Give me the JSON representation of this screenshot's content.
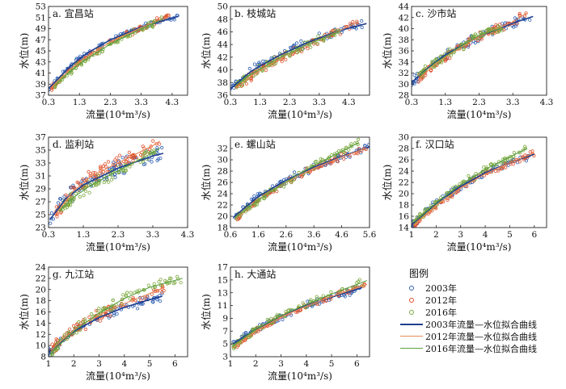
{
  "chart_data": [
    {
      "id": "a",
      "type": "scatter",
      "title": "a. 宜昌站",
      "xlabel": "流量(10⁴m³/s)",
      "ylabel": "水位(m)",
      "xlim": [
        0.3,
        4.8
      ],
      "ylim": [
        37,
        53
      ],
      "xticks": [
        0.3,
        1.3,
        2.3,
        3.3,
        4.3
      ],
      "yticks": [
        37,
        39,
        41,
        43,
        45,
        47,
        49,
        51,
        53
      ],
      "series": [
        {
          "year": "2003",
          "fit": [
            [
              0.3,
              38.2
            ],
            [
              1.0,
              42.2
            ],
            [
              1.5,
              44.4
            ],
            [
              2.3,
              47.0
            ],
            [
              3.3,
              49.3
            ],
            [
              4.3,
              50.9
            ],
            [
              4.5,
              51.2
            ]
          ],
          "spread": 0.5
        },
        {
          "year": "2012",
          "fit": [
            [
              0.4,
              38.4
            ],
            [
              1.0,
              41.7
            ],
            [
              1.5,
              43.8
            ],
            [
              2.3,
              46.6
            ],
            [
              3.3,
              49.2
            ],
            [
              4.2,
              51.2
            ]
          ],
          "spread": 0.5
        },
        {
          "year": "2016",
          "fit": [
            [
              0.5,
              38.8
            ],
            [
              1.0,
              41.3
            ],
            [
              1.5,
              43.4
            ],
            [
              2.3,
              46.2
            ],
            [
              3.3,
              49.0
            ],
            [
              4.0,
              50.7
            ]
          ],
          "spread": 0.5
        }
      ]
    },
    {
      "id": "b",
      "type": "scatter",
      "title": "b. 枝城站",
      "xlabel": "流量(10⁴m³/s)",
      "ylabel": "水位(m)",
      "xlim": [
        0.3,
        5.0
      ],
      "ylim": [
        36,
        50
      ],
      "xticks": [
        0.3,
        1.3,
        2.3,
        3.3,
        4.3
      ],
      "yticks": [
        36,
        38,
        40,
        42,
        44,
        46,
        48,
        50
      ],
      "series": [
        {
          "year": "2003",
          "fit": [
            [
              0.3,
              37.0
            ],
            [
              1.0,
              39.8
            ],
            [
              2.0,
              42.4
            ],
            [
              3.0,
              44.5
            ],
            [
              4.0,
              46.2
            ],
            [
              4.9,
              47.3
            ]
          ],
          "spread": 0.7
        },
        {
          "year": "2012",
          "fit": [
            [
              0.5,
              37.2
            ],
            [
              1.0,
              39.0
            ],
            [
              2.0,
              41.9
            ],
            [
              3.0,
              44.2
            ],
            [
              4.0,
              46.2
            ],
            [
              4.6,
              47.6
            ]
          ],
          "spread": 0.6
        },
        {
          "year": "2016",
          "fit": [
            [
              0.5,
              37.6
            ],
            [
              1.0,
              39.3
            ],
            [
              2.0,
              42.0
            ],
            [
              3.0,
              44.2
            ],
            [
              4.0,
              46.1
            ]
          ],
          "spread": 0.6
        }
      ]
    },
    {
      "id": "c",
      "type": "scatter",
      "title": "c. 沙市站",
      "xlabel": "流量(10⁴m³/s)",
      "ylabel": "水位(m)",
      "xlim": [
        0.3,
        4.3
      ],
      "ylim": [
        28,
        44
      ],
      "xticks": [
        0.3,
        1.3,
        2.3,
        3.3,
        4.3
      ],
      "yticks": [
        28,
        30,
        32,
        34,
        36,
        38,
        40,
        42,
        44
      ],
      "series": [
        {
          "year": "2003",
          "fit": [
            [
              0.3,
              30.3
            ],
            [
              0.8,
              33.0
            ],
            [
              1.3,
              35.3
            ],
            [
              2.3,
              38.6
            ],
            [
              3.3,
              41.0
            ],
            [
              3.9,
              42.2
            ]
          ],
          "spread": 0.8
        },
        {
          "year": "2012",
          "fit": [
            [
              0.5,
              30.8
            ],
            [
              1.0,
              33.6
            ],
            [
              1.5,
              35.7
            ],
            [
              2.3,
              38.6
            ],
            [
              3.3,
              41.2
            ],
            [
              3.7,
              42.8
            ]
          ],
          "spread": 0.7
        },
        {
          "year": "2016",
          "fit": [
            [
              0.5,
              31.4
            ],
            [
              1.0,
              33.8
            ],
            [
              1.5,
              35.8
            ],
            [
              2.3,
              38.8
            ],
            [
              3.0,
              40.2
            ]
          ],
          "spread": 0.7
        }
      ]
    },
    {
      "id": "d",
      "type": "scatter",
      "title": "d. 监利站",
      "xlabel": "流量(10⁴m³/s)",
      "ylabel": "水位(m)",
      "xlim": [
        0.3,
        4.3
      ],
      "ylim": [
        23,
        37
      ],
      "xticks": [
        0.3,
        1.3,
        2.3,
        3.3,
        4.3
      ],
      "yticks": [
        23,
        25,
        27,
        29,
        31,
        33,
        35,
        37
      ],
      "series": [
        {
          "year": "2003",
          "fit": [
            [
              0.35,
              24.3
            ],
            [
              0.8,
              27.5
            ],
            [
              1.3,
              29.6
            ],
            [
              2.3,
              32.2
            ],
            [
              3.3,
              34.1
            ],
            [
              3.6,
              34.5
            ]
          ],
          "spread": 1.2
        },
        {
          "year": "2012",
          "fit": [
            [
              0.5,
              25.0
            ],
            [
              1.0,
              28.6
            ],
            [
              1.5,
              30.9
            ],
            [
              2.3,
              33.0
            ],
            [
              3.3,
              35.7
            ],
            [
              3.5,
              36.4
            ]
          ],
          "spread": 1.0
        },
        {
          "year": "2016",
          "fit": [
            [
              0.6,
              25.5
            ],
            [
              1.0,
              27.6
            ],
            [
              1.5,
              29.5
            ],
            [
              2.3,
              31.8
            ],
            [
              3.3,
              34.6
            ],
            [
              3.5,
              35.3
            ]
          ],
          "spread": 0.9
        }
      ]
    },
    {
      "id": "e",
      "type": "scatter",
      "title": "e. 螺山站",
      "xlabel": "流量(10⁴m³/s)",
      "ylabel": "水位(m)",
      "xlim": [
        0.6,
        5.6
      ],
      "ylim": [
        18,
        34
      ],
      "xticks": [
        0.6,
        1.6,
        2.6,
        3.6,
        4.6,
        5.6
      ],
      "yticks": [
        18,
        20,
        22,
        24,
        26,
        28,
        30,
        32
      ],
      "series": [
        {
          "year": "2003",
          "fit": [
            [
              0.7,
              19.8
            ],
            [
              1.6,
              23.5
            ],
            [
              2.6,
              26.4
            ],
            [
              3.6,
              28.7
            ],
            [
              4.6,
              30.6
            ],
            [
              5.6,
              32.3
            ]
          ],
          "spread": 0.6
        },
        {
          "year": "2012",
          "fit": [
            [
              0.8,
              19.6
            ],
            [
              1.6,
              23.0
            ],
            [
              2.6,
              26.0
            ],
            [
              3.6,
              28.5
            ],
            [
              4.6,
              30.5
            ],
            [
              5.5,
              32.1
            ]
          ],
          "spread": 0.5
        },
        {
          "year": "2016",
          "fit": [
            [
              0.8,
              19.8
            ],
            [
              1.6,
              22.9
            ],
            [
              2.6,
              26.1
            ],
            [
              3.6,
              29.0
            ],
            [
              4.6,
              31.5
            ],
            [
              5.2,
              33.0
            ]
          ],
          "spread": 0.6
        }
      ]
    },
    {
      "id": "f",
      "type": "scatter",
      "title": "f. 汉口站",
      "xlabel": "流量(10⁴m³/s)",
      "ylabel": "水位(m)",
      "xlim": [
        1,
        6.5
      ],
      "ylim": [
        14,
        30
      ],
      "xticks": [
        1,
        2,
        3,
        4,
        5,
        6
      ],
      "yticks": [
        14,
        16,
        18,
        20,
        22,
        24,
        26,
        28,
        30
      ],
      "series": [
        {
          "year": "2003",
          "fit": [
            [
              1.0,
              14.5
            ],
            [
              2.0,
              18.3
            ],
            [
              3.0,
              21.3
            ],
            [
              4.0,
              23.7
            ],
            [
              5.0,
              25.5
            ],
            [
              6.0,
              27.0
            ]
          ],
          "spread": 0.6
        },
        {
          "year": "2012",
          "fit": [
            [
              1.1,
              14.4
            ],
            [
              2.0,
              17.9
            ],
            [
              3.0,
              21.0
            ],
            [
              4.0,
              23.5
            ],
            [
              5.0,
              25.5
            ],
            [
              6.0,
              27.2
            ]
          ],
          "spread": 0.5
        },
        {
          "year": "2016",
          "fit": [
            [
              1.1,
              15.0
            ],
            [
              2.0,
              18.4
            ],
            [
              3.0,
              21.6
            ],
            [
              4.0,
              24.3
            ],
            [
              5.0,
              26.5
            ],
            [
              5.7,
              28.0
            ]
          ],
          "spread": 0.6
        }
      ]
    },
    {
      "id": "g",
      "type": "scatter",
      "title": "g. 九江站",
      "xlabel": "流量(10⁴m³/s)",
      "ylabel": "水位(m)",
      "xlim": [
        1,
        6.5
      ],
      "ylim": [
        8,
        24
      ],
      "xticks": [
        1,
        2,
        3,
        4,
        5,
        6
      ],
      "yticks": [
        8,
        10,
        12,
        14,
        16,
        18,
        20,
        22,
        24
      ],
      "series": [
        {
          "year": "2003",
          "fit": [
            [
              1.0,
              8.8
            ],
            [
              2.0,
              12.5
            ],
            [
              3.0,
              15.0
            ],
            [
              4.0,
              16.8
            ],
            [
              5.0,
              18.2
            ],
            [
              5.5,
              18.8
            ]
          ],
          "spread": 0.8
        },
        {
          "year": "2012",
          "fit": [
            [
              1.1,
              9.2
            ],
            [
              2.0,
              12.8
            ],
            [
              3.0,
              15.5
            ],
            [
              4.0,
              17.5
            ],
            [
              5.0,
              19.3
            ],
            [
              5.6,
              20.4
            ]
          ],
          "spread": 1.0
        },
        {
          "year": "2016",
          "fit": [
            [
              1.1,
              8.6
            ],
            [
              2.0,
              12.6
            ],
            [
              3.0,
              15.8
            ],
            [
              4.0,
              18.4
            ],
            [
              5.0,
              20.4
            ],
            [
              6.3,
              22.0
            ]
          ],
          "spread": 0.8
        }
      ]
    },
    {
      "id": "h",
      "type": "scatter",
      "title": "h. 大通站",
      "xlabel": "流量(10⁴m³/s)",
      "ylabel": "水位(m)",
      "xlim": [
        1,
        6.5
      ],
      "ylim": [
        3,
        17
      ],
      "xticks": [
        1,
        2,
        3,
        4,
        5,
        6
      ],
      "yticks": [
        3,
        5,
        7,
        9,
        11,
        13,
        15,
        17
      ],
      "series": [
        {
          "year": "2003",
          "fit": [
            [
              1.1,
              5.0
            ],
            [
              2.0,
              7.3
            ],
            [
              3.0,
              9.3
            ],
            [
              4.0,
              11.0
            ],
            [
              5.0,
              12.3
            ],
            [
              6.2,
              13.8
            ]
          ],
          "spread": 0.5
        },
        {
          "year": "2012",
          "fit": [
            [
              1.1,
              4.4
            ],
            [
              2.0,
              7.0
            ],
            [
              3.0,
              9.2
            ],
            [
              4.0,
              10.9
            ],
            [
              5.0,
              12.4
            ],
            [
              6.4,
              14.3
            ]
          ],
          "spread": 0.4
        },
        {
          "year": "2016",
          "fit": [
            [
              1.1,
              4.7
            ],
            [
              2.0,
              7.3
            ],
            [
              3.0,
              9.4
            ],
            [
              4.0,
              11.2
            ],
            [
              5.0,
              12.8
            ],
            [
              6.4,
              14.9
            ]
          ],
          "spread": 0.5
        }
      ]
    }
  ],
  "legend": {
    "title": "图例",
    "items": [
      {
        "label": "2003年",
        "kind": "marker",
        "color": "#2f5fb3"
      },
      {
        "label": "2012年",
        "kind": "marker",
        "color": "#e0502a"
      },
      {
        "label": "2016年",
        "kind": "marker",
        "color": "#7ba83c"
      },
      {
        "label": "2003年流量—水位拟合曲线",
        "kind": "line",
        "color": "#1f3f8f"
      },
      {
        "label": "2012年流量—水位拟合曲线",
        "kind": "line",
        "color": "#e98a5a"
      },
      {
        "label": "2016年流量—水位拟合曲线",
        "kind": "line",
        "color": "#5aa040"
      }
    ]
  },
  "colors": {
    "2003": "#2f5fb3",
    "2012": "#e0502a",
    "2016": "#7ba83c",
    "fit2003": "#1f3f8f",
    "fit2012": "#e98a5a",
    "fit2016": "#5aa040"
  }
}
